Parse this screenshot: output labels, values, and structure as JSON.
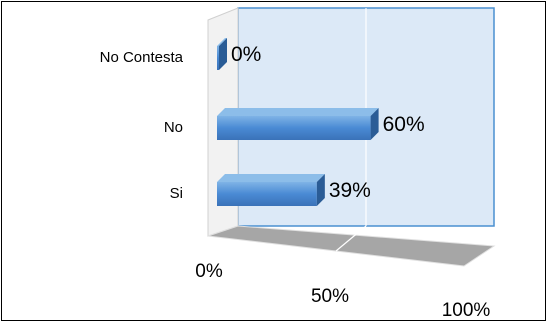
{
  "chart_data": {
    "type": "bar",
    "orientation": "horizontal",
    "style": "3d",
    "title": "",
    "xlabel": "",
    "ylabel": "",
    "categories": [
      "No Contesta",
      "No",
      "Si"
    ],
    "values": [
      0,
      60,
      39
    ],
    "value_labels": [
      "0%",
      "60%",
      "39%"
    ],
    "x_ticks": [
      "0%",
      "50%",
      "100%"
    ],
    "xlim": [
      0,
      100
    ],
    "grid": true,
    "legend": "none",
    "colors": {
      "bar_front": "#4a8ad4",
      "bar_top": "#8cbde9",
      "bar_side": "#2a5c96",
      "back_wall": "#dce9f7",
      "wall_border": "#4a8fd0",
      "floor": "#a6a6a6"
    }
  }
}
